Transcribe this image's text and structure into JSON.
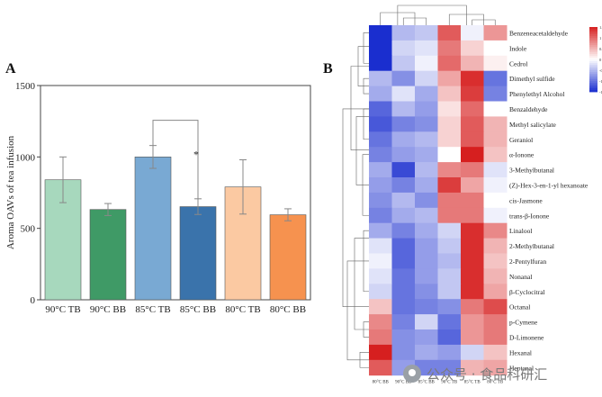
{
  "chart_data": [
    {
      "panel": "A",
      "type": "bar",
      "title": "",
      "xlabel": "",
      "ylabel": "Aroma OAVs of tea infusion",
      "ylim": [
        0,
        1500
      ],
      "yticks": [
        0,
        500,
        1000,
        1500
      ],
      "categories": [
        "90°C TB",
        "90°C BB",
        "85°C TB",
        "85°C BB",
        "80°C TB",
        "80°C BB"
      ],
      "values": [
        840,
        632,
        1000,
        652,
        790,
        595
      ],
      "errors": [
        160,
        42,
        80,
        55,
        190,
        42
      ],
      "colors": [
        "#a7d8bd",
        "#3f9a66",
        "#79a9d3",
        "#3a73ab",
        "#fbc9a2",
        "#f6924f"
      ],
      "significance": {
        "between": [
          "85°C TB",
          "85°C BB"
        ],
        "label": "*"
      }
    },
    {
      "panel": "B",
      "type": "heatmap",
      "columns": [
        "80°C BB",
        "90°C BB",
        "85°C BB",
        "90°C TB",
        "85°C TB",
        "80°C TB"
      ],
      "rows": [
        "Benzeneacetaldehyde",
        "Indole",
        "Cedrol",
        "Dimethyl sulfide",
        "Phenylethyl Alcohol",
        "Benzaldehyde",
        "Methyl salicylate",
        "Geraniol",
        "α-Ionone",
        "3-Methylbutanal",
        "(Z)-Hex-3-en-1-yl hexanoate",
        "cis-Jasmone",
        "trans-β-Ionone",
        "Linalool",
        "2-Methylbutanal",
        "2-Pentylfuran",
        "Nonanal",
        "β-Cyclocitral",
        "Octanal",
        "p-Cymene",
        "D-Limonene",
        "Hexanal",
        "Heptanal"
      ],
      "values": [
        [
          -1.6,
          -0.5,
          -0.4,
          1.1,
          -0.1,
          0.7
        ],
        [
          -1.6,
          -0.3,
          -0.2,
          0.9,
          0.3,
          0.0
        ],
        [
          -1.5,
          -0.4,
          -0.1,
          1.0,
          0.5,
          0.1
        ],
        [
          -0.5,
          -0.8,
          -0.3,
          0.6,
          1.4,
          -1.0
        ],
        [
          -0.6,
          -0.2,
          -0.6,
          0.4,
          1.3,
          -0.9
        ],
        [
          -1.1,
          -0.5,
          -0.7,
          0.2,
          1.0,
          0.0
        ],
        [
          -1.2,
          -0.9,
          -0.8,
          0.3,
          1.1,
          0.5
        ],
        [
          -1.0,
          -0.6,
          -0.5,
          0.3,
          1.1,
          0.5
        ],
        [
          -0.9,
          -0.7,
          -0.6,
          0.0,
          1.5,
          0.4
        ],
        [
          -0.6,
          -1.3,
          -0.5,
          0.8,
          0.9,
          -0.2
        ],
        [
          -0.7,
          -0.9,
          -0.6,
          1.3,
          0.6,
          -0.1
        ],
        [
          -0.8,
          -0.5,
          -0.8,
          0.9,
          0.9,
          0.0
        ],
        [
          -0.9,
          -0.6,
          -0.5,
          0.9,
          0.9,
          -0.1
        ],
        [
          -0.6,
          -0.9,
          -0.6,
          -0.3,
          1.4,
          0.8
        ],
        [
          -0.2,
          -1.1,
          -0.7,
          -0.4,
          1.4,
          0.5
        ],
        [
          -0.1,
          -1.1,
          -0.7,
          -0.5,
          1.4,
          0.4
        ],
        [
          -0.2,
          -1.0,
          -0.7,
          -0.4,
          1.4,
          0.5
        ],
        [
          -0.3,
          -1.0,
          -0.8,
          -0.4,
          1.4,
          0.6
        ],
        [
          0.4,
          -1.0,
          -0.9,
          -0.8,
          0.9,
          1.2
        ],
        [
          0.8,
          -0.9,
          -0.3,
          -1.0,
          0.7,
          0.9
        ],
        [
          0.9,
          -0.8,
          -0.7,
          -1.1,
          0.7,
          0.9
        ],
        [
          1.6,
          -0.8,
          -0.6,
          -0.7,
          -0.3,
          0.4
        ],
        [
          1.1,
          -0.7,
          -0.9,
          -0.9,
          0.5,
          0.6
        ]
      ],
      "color_scale": {
        "min": -1.5,
        "max": 1.5,
        "ticks": [
          "1.5",
          "1",
          "0.5",
          "0",
          "-0.5",
          "-1",
          "-1.5"
        ],
        "low": "#1a2ecf",
        "mid": "#ffffff",
        "high": "#d61f1f"
      }
    }
  ],
  "panel_labels": {
    "a": "A",
    "b": "B"
  },
  "watermark": {
    "text": "公众号 · 食品科研汇",
    "icon": "wechat-icon"
  }
}
